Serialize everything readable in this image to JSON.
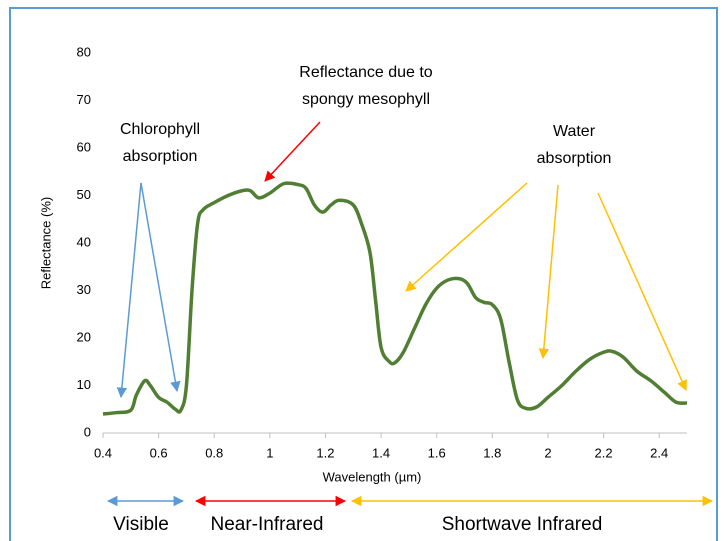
{
  "chart_data": {
    "type": "line",
    "xlabel": "Wavelength (µm)",
    "ylabel": "Reflectance (%)",
    "xlim": [
      0.4,
      2.5
    ],
    "ylim": [
      0,
      80
    ],
    "xticks": [
      0.4,
      0.6,
      0.8,
      1,
      1.2,
      1.4,
      1.6,
      1.8,
      2,
      2.2,
      2.4
    ],
    "yticks": [
      0,
      10,
      20,
      30,
      40,
      50,
      60,
      70,
      80
    ],
    "series": [
      {
        "color": "#507e32",
        "x": [
          0.4,
          0.45,
          0.5,
          0.52,
          0.55,
          0.57,
          0.6,
          0.63,
          0.66,
          0.68,
          0.7,
          0.72,
          0.74,
          0.76,
          0.8,
          0.85,
          0.9,
          0.93,
          0.96,
          1.0,
          1.05,
          1.1,
          1.13,
          1.16,
          1.19,
          1.22,
          1.25,
          1.3,
          1.33,
          1.36,
          1.38,
          1.4,
          1.43,
          1.45,
          1.48,
          1.52,
          1.56,
          1.6,
          1.64,
          1.68,
          1.71,
          1.74,
          1.77,
          1.8,
          1.83,
          1.86,
          1.89,
          1.92,
          1.96,
          2.0,
          2.05,
          2.1,
          2.15,
          2.2,
          2.23,
          2.27,
          2.32,
          2.37,
          2.42,
          2.46,
          2.5
        ],
        "values": [
          4,
          4.3,
          4.8,
          8,
          11,
          10,
          7.5,
          6.5,
          5,
          4.8,
          10,
          30,
          44,
          47,
          48.5,
          50,
          51,
          51,
          49.5,
          50.5,
          52.5,
          52.3,
          51.5,
          48,
          46.5,
          48,
          49,
          48,
          44,
          38,
          28,
          18,
          15,
          14.8,
          17,
          22,
          27,
          30.5,
          32.2,
          32.5,
          31.5,
          28.5,
          27.5,
          27,
          24,
          15,
          7,
          5.2,
          5.5,
          7.5,
          10,
          13,
          15.5,
          17,
          17.2,
          16,
          13,
          11,
          8.5,
          6.5,
          6.3
        ]
      }
    ],
    "annotations": [
      {
        "lines": [
          "Chlorophyll",
          "absorption"
        ],
        "color": "#5b9bd5"
      },
      {
        "lines": [
          "Reflectance due to",
          "spongy mesophyll"
        ],
        "color": "#ff0000"
      },
      {
        "lines": [
          "Water",
          "absorption"
        ],
        "color": "#ffc000"
      }
    ],
    "bands": [
      {
        "label": "Visible",
        "color": "#5b9bd5"
      },
      {
        "label": "Near-Infrared",
        "color": "#ff0000"
      },
      {
        "label": "Shortwave Infrared",
        "color": "#ffc000"
      }
    ]
  }
}
